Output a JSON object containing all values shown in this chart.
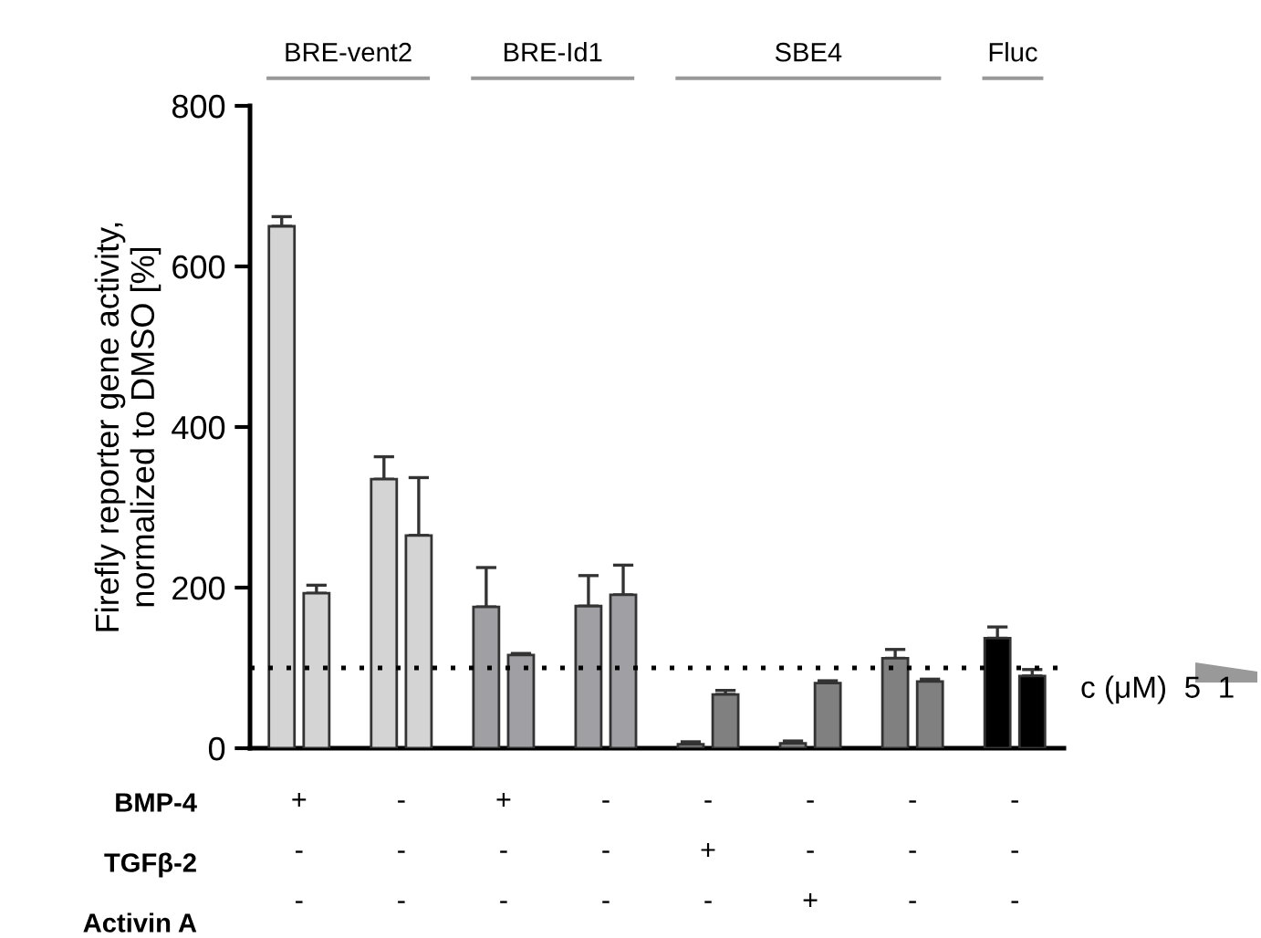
{
  "chart_data": {
    "type": "bar",
    "ylabel": "Firefly reporter gene activity,\nnormalized to DMSO [%]",
    "categories": [
      "+\n-\n-",
      "-\n-\n-",
      "+\n-\n-",
      "-\n-\n-",
      "-\n+\n-",
      "-\n-\n+",
      "-\n-\n-",
      "-\n-\n-"
    ],
    "series": [
      {
        "colors": [
          "#d4d4d4",
          "#d4d4d4",
          "#a0a0a4",
          "#a0a0a4",
          "#808080",
          "#808080",
          "#808080",
          "#000000"
        ],
        "values": [
          650,
          335,
          176,
          177,
          5,
          6,
          112,
          137
        ],
        "errors": [
          [
            650,
            662
          ],
          [
            335,
            363
          ],
          [
            176,
            225
          ],
          [
            177,
            215
          ],
          [
            5,
            8
          ],
          [
            6,
            9
          ],
          [
            112,
            123
          ],
          [
            137,
            151
          ]
        ]
      },
      {
        "colors": [
          "#d4d4d4",
          "#d4d4d4",
          "#a0a0a4",
          "#a0a0a4",
          "#808080",
          "#808080",
          "#808080",
          "#000000"
        ],
        "values": [
          193,
          265,
          116,
          191,
          67,
          81,
          83,
          90
        ],
        "errors": [
          [
            193,
            203
          ],
          [
            265,
            337
          ],
          [
            116,
            118
          ],
          [
            191,
            228
          ],
          [
            67,
            72
          ],
          [
            81,
            84
          ],
          [
            83,
            86
          ],
          [
            90,
            98
          ]
        ]
      }
    ],
    "ylim": [
      0,
      800
    ],
    "yticks": [
      0,
      200,
      400,
      600,
      800
    ],
    "ref_lines": [
      {
        "axis": "y",
        "value": 100,
        "line_style": "dotted",
        "color": "#000000"
      }
    ],
    "annotations": [
      "BRE-vent2",
      "BRE-Id1",
      "SBE4",
      "Fluc",
      "BMP-4",
      "TGFβ-2",
      "Activin A",
      "c (μM)  5  1"
    ],
    "grid": false,
    "legend": false
  }
}
